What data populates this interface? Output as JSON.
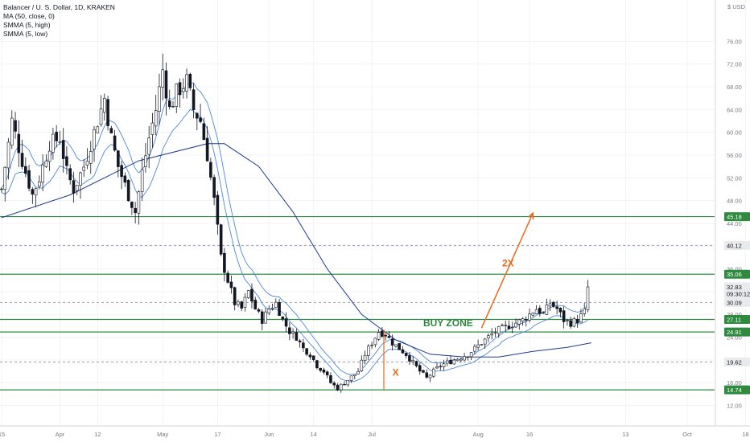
{
  "legend": {
    "symbol": "Balancer / U. S. Dollar, 1D, KRAKEN",
    "ma": "MA (50, close, 0)",
    "smma_high": "SMMA (5, high)",
    "smma_low": "SMMA (5, low)"
  },
  "chart_data": {
    "type": "candlestick",
    "symbol": "Balancer / U. S. Dollar",
    "interval": "1D",
    "exchange": "KRAKEN",
    "currency": "USD",
    "y_ticks": [
      12,
      16,
      20,
      24,
      28,
      32,
      36,
      40,
      44,
      48,
      52,
      56,
      60,
      64,
      68,
      72,
      76
    ],
    "x_ticks": [
      {
        "label": "15",
        "day": 0
      },
      {
        "label": "Apr",
        "day": 17
      },
      {
        "label": "12",
        "day": 28
      },
      {
        "label": "May",
        "day": 47
      },
      {
        "label": "17",
        "day": 63
      },
      {
        "label": "Jun",
        "day": 78
      },
      {
        "label": "14",
        "day": 91
      },
      {
        "label": "Jul",
        "day": 108
      },
      {
        "label": "Aug",
        "day": 139
      },
      {
        "label": "16",
        "day": 154
      },
      {
        "label": "13",
        "day": 182
      },
      {
        "label": "Oct",
        "day": 200
      },
      {
        "label": "18",
        "day": 217
      }
    ],
    "price_badges": [
      {
        "value": "45.18",
        "price": 45.18,
        "kind": "level"
      },
      {
        "value": "40.12",
        "price": 40.12,
        "kind": "dashed"
      },
      {
        "value": "35.06",
        "price": 35.06,
        "kind": "level"
      },
      {
        "value": "32.83",
        "price": 32.83,
        "kind": "last"
      },
      {
        "value": "09:30:12",
        "price": 31.6,
        "kind": "countdown"
      },
      {
        "value": "30.09",
        "price": 30.09,
        "kind": "dashed"
      },
      {
        "value": "27.11",
        "price": 27.11,
        "kind": "level"
      },
      {
        "value": "24.91",
        "price": 24.91,
        "kind": "level"
      },
      {
        "value": "19.62",
        "price": 19.62,
        "kind": "dashed"
      },
      {
        "value": "14.74",
        "price": 14.74,
        "kind": "level"
      }
    ],
    "horizontal_levels": [
      45.18,
      35.06,
      27.11,
      24.91,
      14.74
    ],
    "dashed_levels": [
      40.12,
      30.09,
      19.62
    ],
    "annotations": [
      {
        "text": "BUY ZONE",
        "day": 123,
        "price": 25.9
      },
      {
        "text": "2X",
        "day": 146,
        "price": 36.4
      },
      {
        "text": "X",
        "day": 114,
        "price": 17.2
      }
    ],
    "arrow": {
      "from_day": 140,
      "from_price": 25.6,
      "to_day": 155,
      "to_price": 45.8
    },
    "x_marker": {
      "day": 111.5,
      "from_price": 14.74,
      "to_price": 25.3
    },
    "anchors": [
      [
        0,
        50
      ],
      [
        3,
        62
      ],
      [
        6,
        55
      ],
      [
        9,
        49
      ],
      [
        11,
        52
      ],
      [
        14,
        58
      ],
      [
        17,
        59
      ],
      [
        19,
        53
      ],
      [
        21,
        50
      ],
      [
        24,
        54
      ],
      [
        27,
        60
      ],
      [
        30,
        66
      ],
      [
        32,
        59
      ],
      [
        34,
        54
      ],
      [
        37,
        49
      ],
      [
        39,
        46
      ],
      [
        41,
        53
      ],
      [
        43,
        59
      ],
      [
        45,
        64
      ],
      [
        47,
        71
      ],
      [
        49,
        64
      ],
      [
        51,
        67
      ],
      [
        54,
        69
      ],
      [
        56,
        64
      ],
      [
        58,
        62
      ],
      [
        60,
        56
      ],
      [
        62,
        48
      ],
      [
        64,
        38
      ],
      [
        66,
        34
      ],
      [
        68,
        30
      ],
      [
        70,
        29
      ],
      [
        72,
        32
      ],
      [
        74,
        29
      ],
      [
        76,
        27
      ],
      [
        78,
        29
      ],
      [
        80,
        30
      ],
      [
        82,
        27
      ],
      [
        84,
        25
      ],
      [
        86,
        24
      ],
      [
        88,
        22
      ],
      [
        90,
        21
      ],
      [
        92,
        19
      ],
      [
        94,
        18
      ],
      [
        96,
        16
      ],
      [
        98,
        15
      ],
      [
        100,
        16
      ],
      [
        102,
        17
      ],
      [
        104,
        18
      ],
      [
        106,
        21
      ],
      [
        108,
        23
      ],
      [
        110,
        25
      ],
      [
        112,
        24.5
      ],
      [
        114,
        23
      ],
      [
        116,
        22
      ],
      [
        118,
        21
      ],
      [
        120,
        19.5
      ],
      [
        122,
        18
      ],
      [
        124,
        16.8
      ],
      [
        126,
        18
      ],
      [
        128,
        19
      ],
      [
        130,
        19.5
      ],
      [
        132,
        20
      ],
      [
        134,
        20.5
      ],
      [
        136,
        21
      ],
      [
        138,
        22
      ],
      [
        140,
        23
      ],
      [
        142,
        24
      ],
      [
        144,
        25
      ],
      [
        146,
        25.5
      ],
      [
        148,
        26
      ],
      [
        150,
        26.5
      ],
      [
        152,
        27
      ],
      [
        154,
        28
      ],
      [
        156,
        29
      ],
      [
        158,
        28
      ],
      [
        160,
        30
      ],
      [
        162,
        29
      ],
      [
        164,
        27
      ],
      [
        166,
        26.5
      ],
      [
        168,
        27
      ],
      [
        170,
        28.5
      ],
      [
        171,
        32.8
      ]
    ],
    "last_price": 32.83,
    "countdown": "09:30:12",
    "series": [
      {
        "name": "MA (50, close, 0)",
        "color": "#1e3a8a",
        "points": [
          [
            0,
            45
          ],
          [
            20,
            49
          ],
          [
            40,
            55
          ],
          [
            60,
            58
          ],
          [
            65,
            58
          ],
          [
            75,
            54
          ],
          [
            85,
            46
          ],
          [
            95,
            36
          ],
          [
            105,
            28
          ],
          [
            115,
            23.5
          ],
          [
            125,
            21
          ],
          [
            135,
            20.5
          ],
          [
            145,
            20.5
          ],
          [
            155,
            21.5
          ],
          [
            165,
            22.2
          ],
          [
            172,
            23
          ]
        ]
      },
      {
        "name": "SMMA (5, high)",
        "color": "#4f86d6"
      },
      {
        "name": "SMMA (5, low)",
        "color": "#4f86d6"
      }
    ]
  },
  "colors": {
    "up": "#ffffff",
    "down": "#131722",
    "level": "#2e8b3e",
    "annotation": "#e8691b",
    "buy_zone": "#2e8b3e",
    "dashed": "#9aa0a6",
    "badge_bg": "#e9eaec",
    "last_bg": "#e9eaec"
  }
}
